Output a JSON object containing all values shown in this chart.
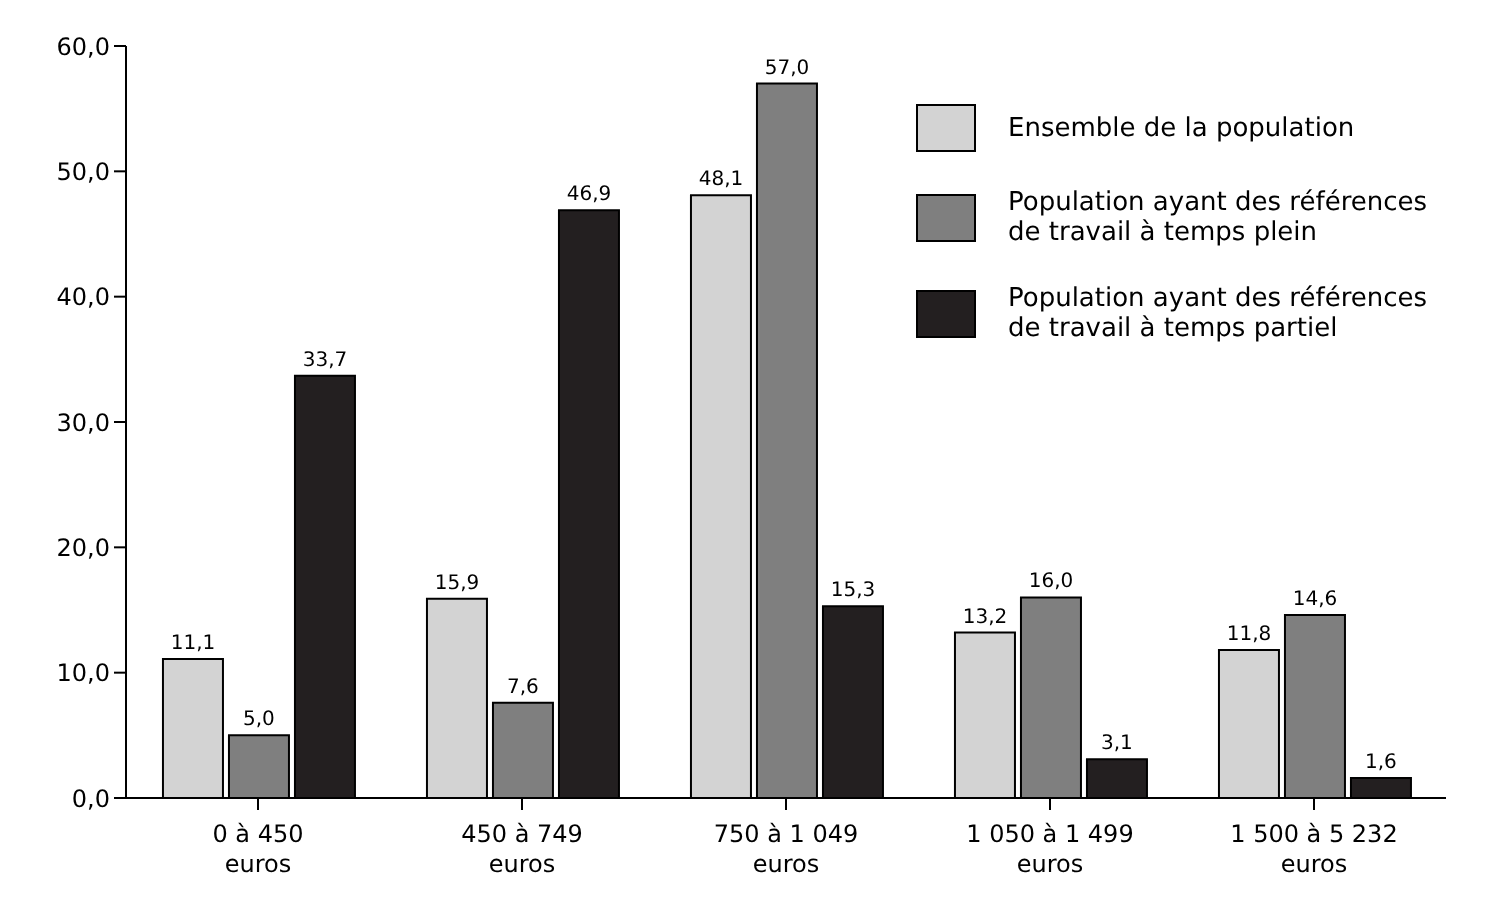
{
  "chart_data": {
    "type": "bar",
    "categories": [
      "0 à 450 euros",
      "450 à 749 euros",
      "750 à 1 049 euros",
      "1 050 à 1 499 euros",
      "1 500 à 5 232 euros"
    ],
    "series": [
      {
        "name": "Ensemble de la population",
        "color": "#d3d3d3",
        "values": [
          11.1,
          15.9,
          48.1,
          13.2,
          11.8
        ],
        "value_labels": [
          "11,1",
          "15,9",
          "48,1",
          "13,2",
          "11,8"
        ]
      },
      {
        "name": "Population ayant des références de travail à temps plein",
        "color": "#7f7f7f",
        "values": [
          5.0,
          7.6,
          57.0,
          16.0,
          14.6
        ],
        "value_labels": [
          "5,0",
          "7,6",
          "57,0",
          "16,0",
          "14,6"
        ]
      },
      {
        "name": "Population ayant des références de travail à temps partiel",
        "color": "#231f20",
        "values": [
          33.7,
          46.9,
          15.3,
          3.1,
          1.6
        ],
        "value_labels": [
          "33,7",
          "46,9",
          "15,3",
          "3,1",
          "1,6"
        ]
      }
    ],
    "ylim": [
      0,
      60
    ],
    "yticks": [
      {
        "value": 0,
        "label": "0,0"
      },
      {
        "value": 10,
        "label": "10,0"
      },
      {
        "value": 20,
        "label": "20,0"
      },
      {
        "value": 30,
        "label": "30,0"
      },
      {
        "value": 40,
        "label": "40,0"
      },
      {
        "value": 50,
        "label": "50,0"
      },
      {
        "value": 60,
        "label": "60,0"
      }
    ],
    "grid": false,
    "legend": "top right"
  }
}
